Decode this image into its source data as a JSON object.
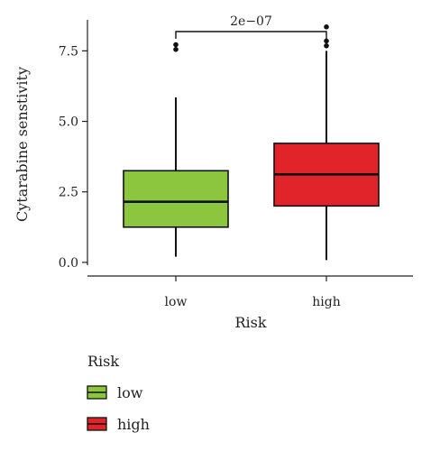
{
  "chart_data": {
    "type": "boxplot",
    "xlabel": "Risk",
    "ylabel": "Cytarabine senstivity",
    "ylim": [
      -0.1,
      8.6
    ],
    "yticks": [
      "0.0",
      "2.5",
      "5.0",
      "7.5"
    ],
    "ytick_values": [
      0.0,
      2.5,
      5.0,
      7.5
    ],
    "categories": [
      "low",
      "high"
    ],
    "boxes": [
      {
        "category": "low",
        "color": "#8cc63f",
        "whisker_low": 0.2,
        "q1": 1.25,
        "median": 2.15,
        "q3": 3.25,
        "whisker_high": 5.85,
        "outliers": [
          7.55,
          7.72
        ]
      },
      {
        "category": "high",
        "color": "#e0242a",
        "whisker_low": 0.08,
        "q1": 2.0,
        "median": 3.12,
        "q3": 4.22,
        "whisker_high": 7.5,
        "outliers": [
          7.68,
          7.85,
          8.35
        ]
      }
    ],
    "significance": {
      "label": "2e−07",
      "between": [
        "low",
        "high"
      ]
    },
    "legend": {
      "title": "Risk",
      "position": "bottom-left",
      "items": [
        {
          "label": "low",
          "color": "#8cc63f"
        },
        {
          "label": "high",
          "color": "#e0242a"
        }
      ]
    },
    "grid": false
  }
}
